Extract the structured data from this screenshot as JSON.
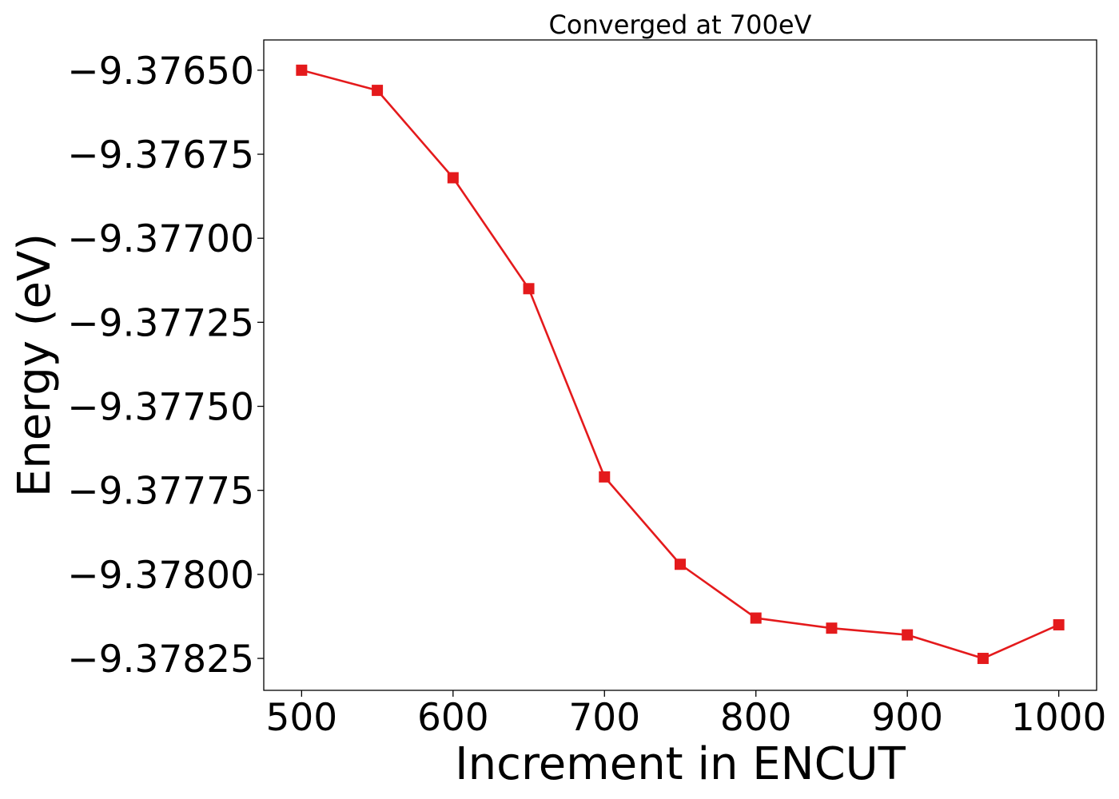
{
  "chart_data": {
    "type": "line",
    "title": "Converged at 700eV",
    "xlabel": "Increment in ENCUT",
    "ylabel": "Energy (eV)",
    "x": [
      500,
      550,
      600,
      650,
      700,
      750,
      800,
      850,
      900,
      950,
      1000
    ],
    "series": [
      {
        "values": [
          -9.3765,
          -9.37656,
          -9.37682,
          -9.37715,
          -9.37771,
          -9.37797,
          -9.37813,
          -9.37816,
          -9.37818,
          -9.37825,
          -9.37815
        ],
        "color": "#e41a1c",
        "marker": "square"
      }
    ],
    "xlim": [
      475,
      1025
    ],
    "ylim": [
      -9.378345,
      -9.37641
    ],
    "xticks": [
      500,
      600,
      700,
      800,
      900,
      1000
    ],
    "xtick_labels": [
      "500",
      "600",
      "700",
      "800",
      "900",
      "1000"
    ],
    "yticks": [
      -9.3765,
      -9.37675,
      -9.377,
      -9.37725,
      -9.3775,
      -9.37775,
      -9.378,
      -9.37825
    ],
    "ytick_labels": [
      "−9.37650",
      "−9.37675",
      "−9.37700",
      "−9.37725",
      "−9.37750",
      "−9.37775",
      "−9.37800",
      "−9.37825"
    ],
    "grid": false,
    "legend": "none"
  }
}
